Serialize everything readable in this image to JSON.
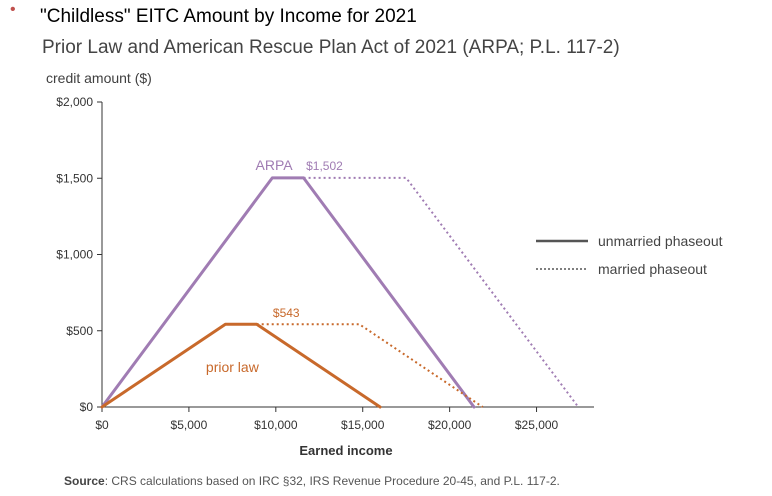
{
  "header": {
    "bullet": "•",
    "title": "\"Childless\" EITC Amount by Income for 2021",
    "subtitle": "Prior Law and American Rescue Plan Act of 2021 (ARPA; P.L. 117-2)"
  },
  "footer": {
    "source_label": "Source",
    "source_text": ": CRS calculations based on IRC §32,  IRS Revenue Procedure 20-45, and P.L. 117-2."
  },
  "colors": {
    "arpa": "#a07cb3",
    "prior": "#c8692b",
    "axis": "#333333",
    "legend_line": "#555555"
  },
  "chart_data": {
    "type": "line",
    "ylabel": "credit amount ($)",
    "xlabel": "Earned income",
    "xlim": [
      0,
      27500
    ],
    "ylim": [
      0,
      2000
    ],
    "x_ticks": [
      0,
      5000,
      10000,
      15000,
      20000,
      25000
    ],
    "x_tick_labels": [
      "$0",
      "$5,000",
      "$10,000",
      "$15,000",
      "$20,000",
      "$25,000"
    ],
    "y_ticks": [
      0,
      500,
      1000,
      1500,
      2000
    ],
    "y_tick_labels": [
      "$0",
      "$500",
      "$1,000",
      "$1,500",
      "$2,000"
    ],
    "legend": {
      "placement": "right",
      "entries": [
        {
          "label": "unmarried phaseout",
          "style": "solid"
        },
        {
          "label": "married phaseout",
          "style": "dotted"
        }
      ]
    },
    "series": [
      {
        "group": "ARPA",
        "style": "solid",
        "color": "#a07cb3",
        "points": [
          [
            0,
            0
          ],
          [
            9800,
            1502
          ],
          [
            11600,
            1502
          ],
          [
            21400,
            0
          ]
        ]
      },
      {
        "group": "ARPA",
        "style": "dotted",
        "color": "#a07cb3",
        "points": [
          [
            11600,
            1502
          ],
          [
            17500,
            1502
          ],
          [
            27400,
            0
          ]
        ]
      },
      {
        "group": "prior law",
        "style": "solid",
        "color": "#c8692b",
        "points": [
          [
            0,
            0
          ],
          [
            7100,
            543
          ],
          [
            8900,
            543
          ],
          [
            16000,
            0
          ]
        ]
      },
      {
        "group": "prior law",
        "style": "dotted",
        "color": "#c8692b",
        "points": [
          [
            8900,
            543
          ],
          [
            14800,
            543
          ],
          [
            21900,
            0
          ]
        ]
      }
    ],
    "annotations": [
      {
        "text": "ARPA",
        "group": "ARPA"
      },
      {
        "text": "$1,502",
        "group": "ARPA"
      },
      {
        "text": "$543",
        "group": "prior law"
      },
      {
        "text": "prior law",
        "group": "prior law"
      }
    ]
  }
}
